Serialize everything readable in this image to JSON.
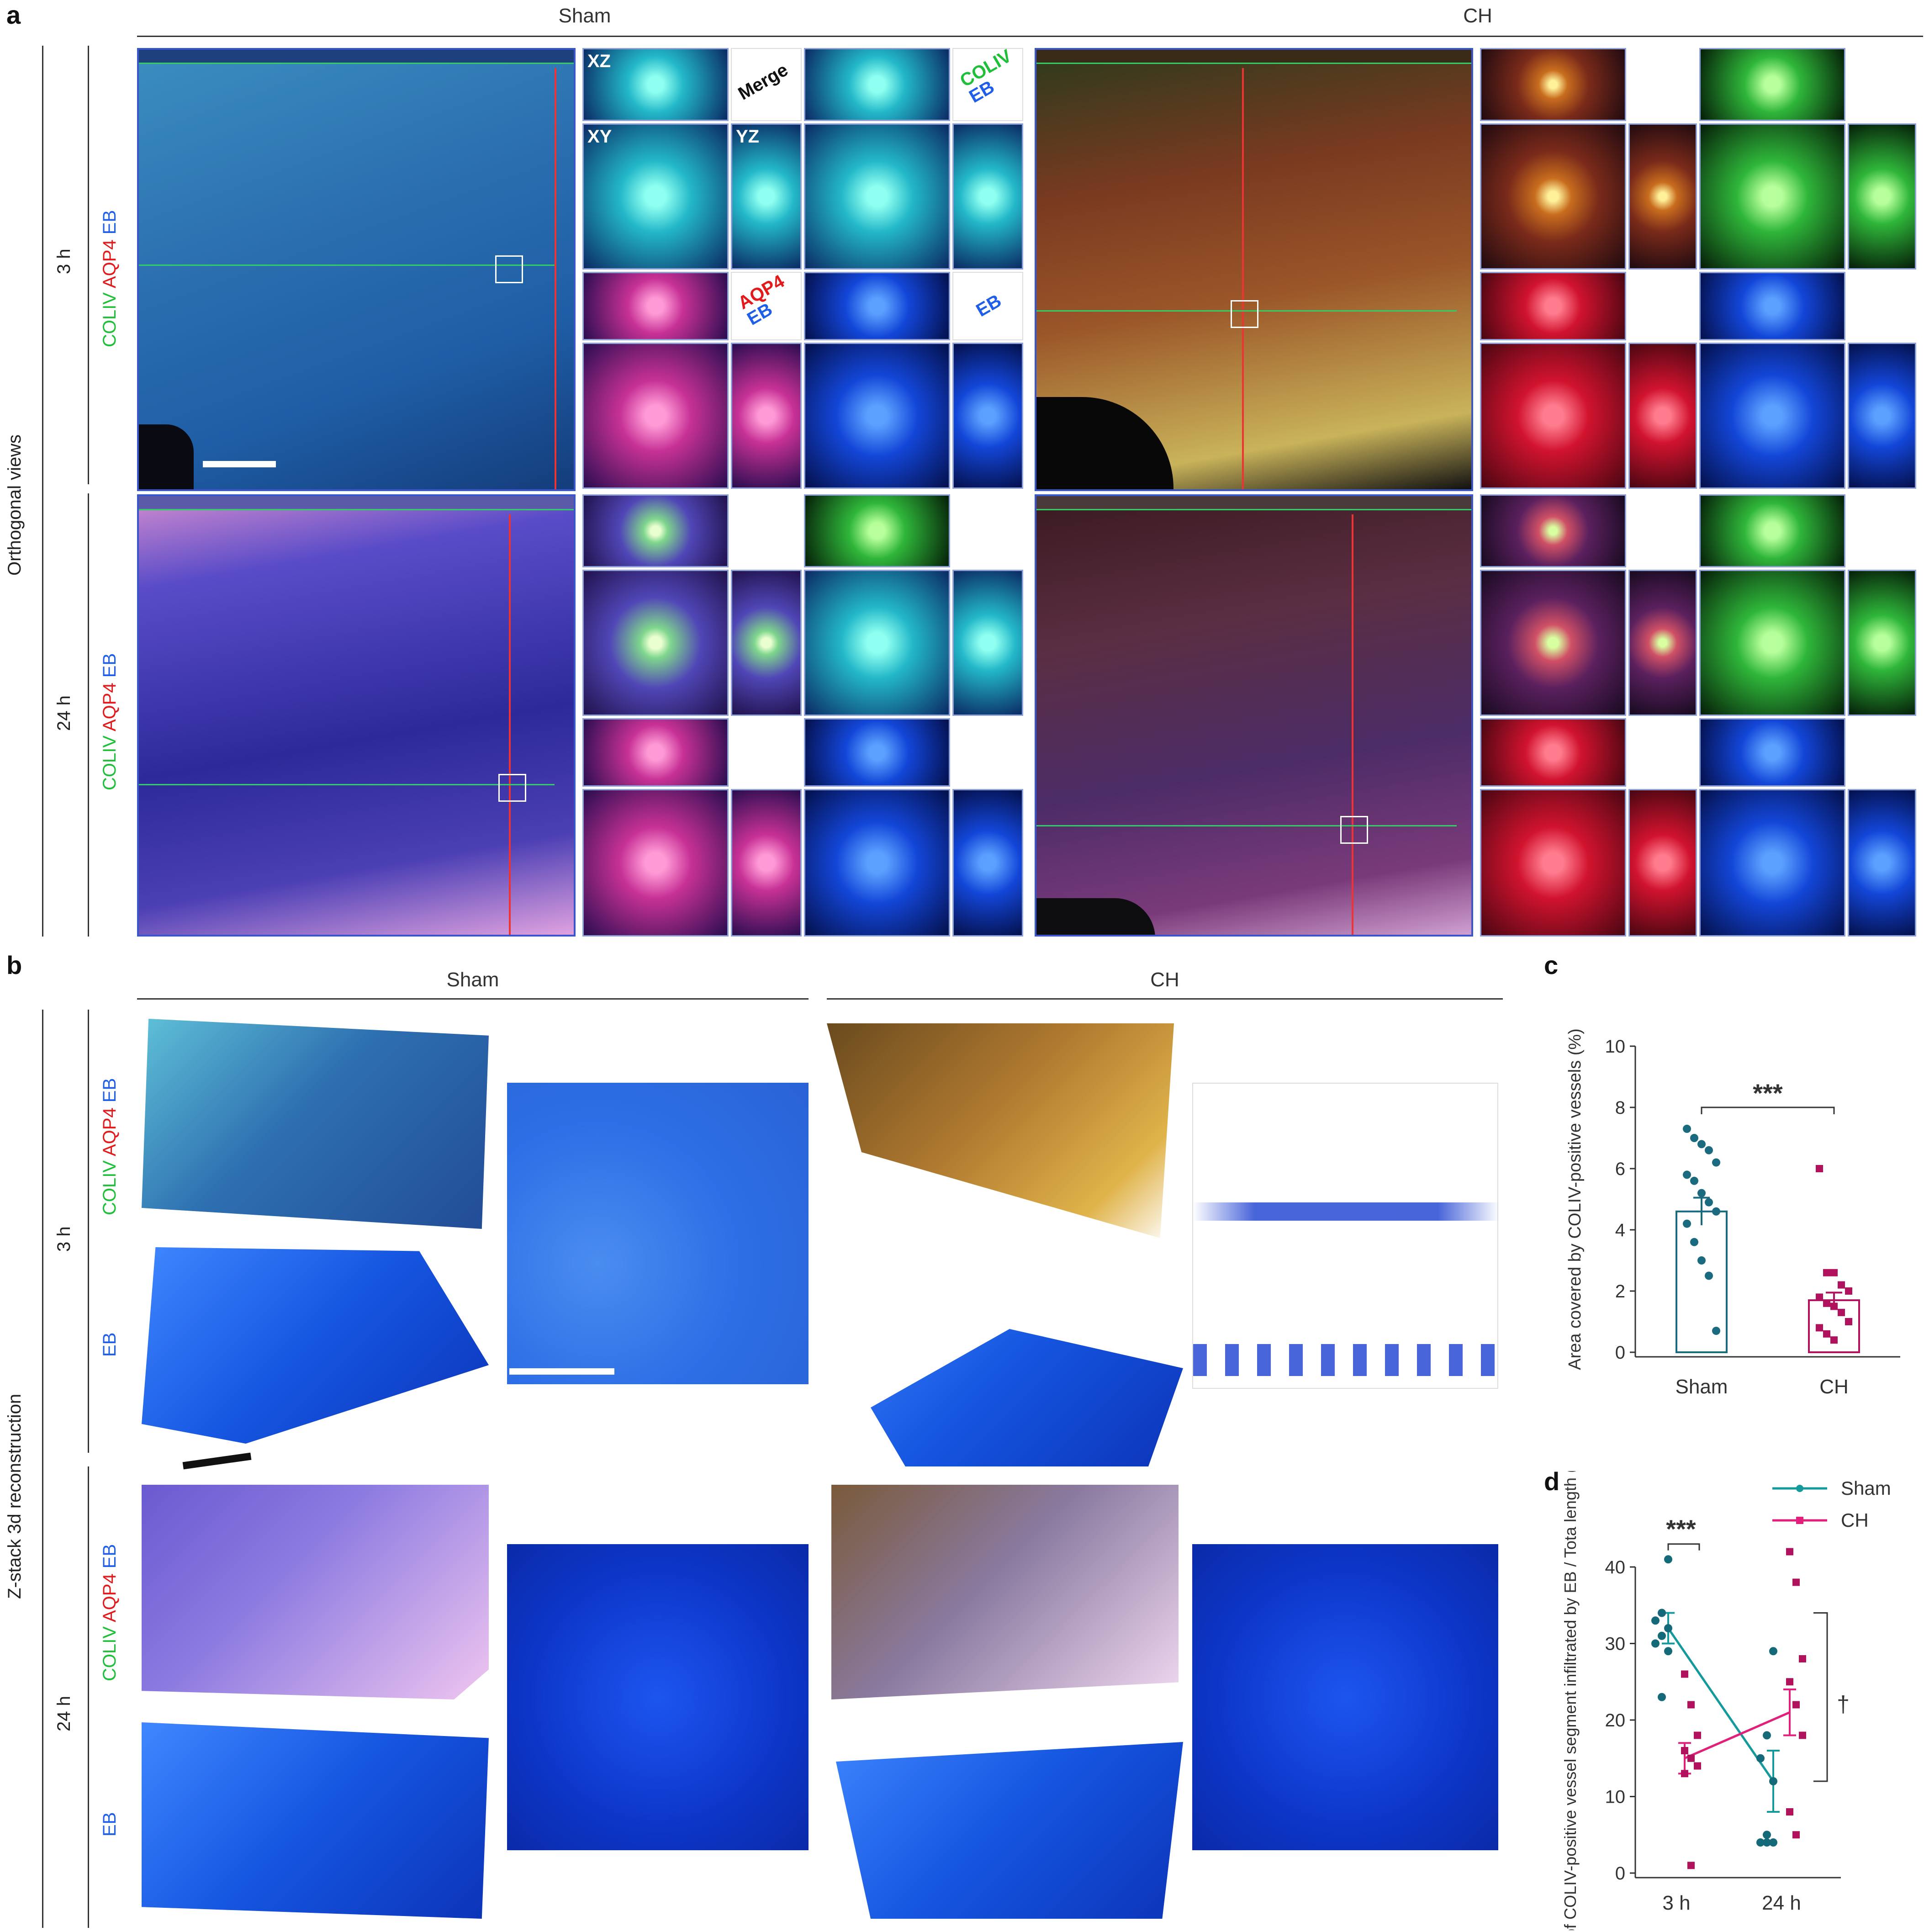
{
  "panel_a": {
    "label": "a",
    "side_label": "Orthogonal views",
    "groups": [
      "Sham",
      "CH"
    ],
    "rows": [
      {
        "time": "3 h",
        "stain": "COLIV AQP4 EB"
      },
      {
        "time": "24 h",
        "stain": "COLIV AQP4 EB"
      }
    ],
    "stain_parts": {
      "coliv": "COLIV",
      "aqp4": "AQP4",
      "eb": "EB"
    },
    "overlay_labels": {
      "xz": "XZ",
      "xy": "XY",
      "yz": "YZ",
      "merge": "Merge",
      "coliv": "COLIV",
      "eb": "EB",
      "aqp4": "AQP4"
    },
    "colors": {
      "coliv": "#1fbf3a",
      "aqp4": "#e31a1c",
      "eb": "#1f5ee8"
    }
  },
  "panel_b": {
    "label": "b",
    "side_label": "Z-stack 3d reconstruction",
    "groups": [
      "Sham",
      "CH"
    ],
    "rows": [
      {
        "time": "3 h",
        "stain_top": "COLIV AQP4 EB",
        "stain_bottom": "EB"
      },
      {
        "time": "24 h",
        "stain_top": "COLIV AQP4 EB",
        "stain_bottom": "EB"
      }
    ]
  },
  "panel_c": {
    "label": "c",
    "significance": "***",
    "chart_data": {
      "type": "bar",
      "categories": [
        "Sham",
        "CH"
      ],
      "values": [
        4.6,
        1.7
      ],
      "errors": [
        0.45,
        0.25
      ],
      "points": {
        "Sham": [
          7.3,
          7.0,
          6.8,
          6.6,
          6.2,
          5.8,
          5.6,
          5.2,
          4.9,
          4.6,
          4.2,
          3.6,
          3.0,
          2.5,
          0.7
        ],
        "CH": [
          6.0,
          2.6,
          2.6,
          2.2,
          2.0,
          1.8,
          1.6,
          1.5,
          1.3,
          1.0,
          0.8,
          0.6,
          0.4
        ]
      },
      "ylabel": "Area covered by COLIV-positive vessels (%)",
      "ylim": [
        0,
        10
      ],
      "yticks": [
        0,
        2,
        4,
        6,
        8,
        10
      ],
      "colors": {
        "Sham": "#1a6a80",
        "CH": "#b0125e"
      }
    }
  },
  "panel_d": {
    "label": "d",
    "significance": "***",
    "dagger": "†",
    "chart_data": {
      "type": "line",
      "x": [
        "3 h",
        "24 h"
      ],
      "series": [
        {
          "name": "Sham",
          "values": [
            32,
            12
          ],
          "errors": [
            2,
            4
          ],
          "points": [
            [
              41,
              34,
              33,
              32,
              31,
              30,
              29,
              23
            ],
            [
              29,
              18,
              15,
              12,
              5,
              4,
              4,
              4
            ]
          ],
          "color": "#159a9c"
        },
        {
          "name": "CH",
          "values": [
            15,
            21
          ],
          "errors": [
            2,
            3
          ],
          "points": [
            [
              26,
              22,
              18,
              16,
              15,
              14,
              13,
              1
            ],
            [
              42,
              38,
              28,
              25,
              22,
              18,
              8,
              5
            ]
          ],
          "color": "#e0207a"
        }
      ],
      "ylabel": "Length of COLIV-positive vessel segment infiltrated by EB / Tota length (%)",
      "ylim": [
        0,
        40
      ],
      "yticks": [
        0,
        10,
        20,
        30,
        40
      ],
      "legend": "top-right"
    }
  }
}
